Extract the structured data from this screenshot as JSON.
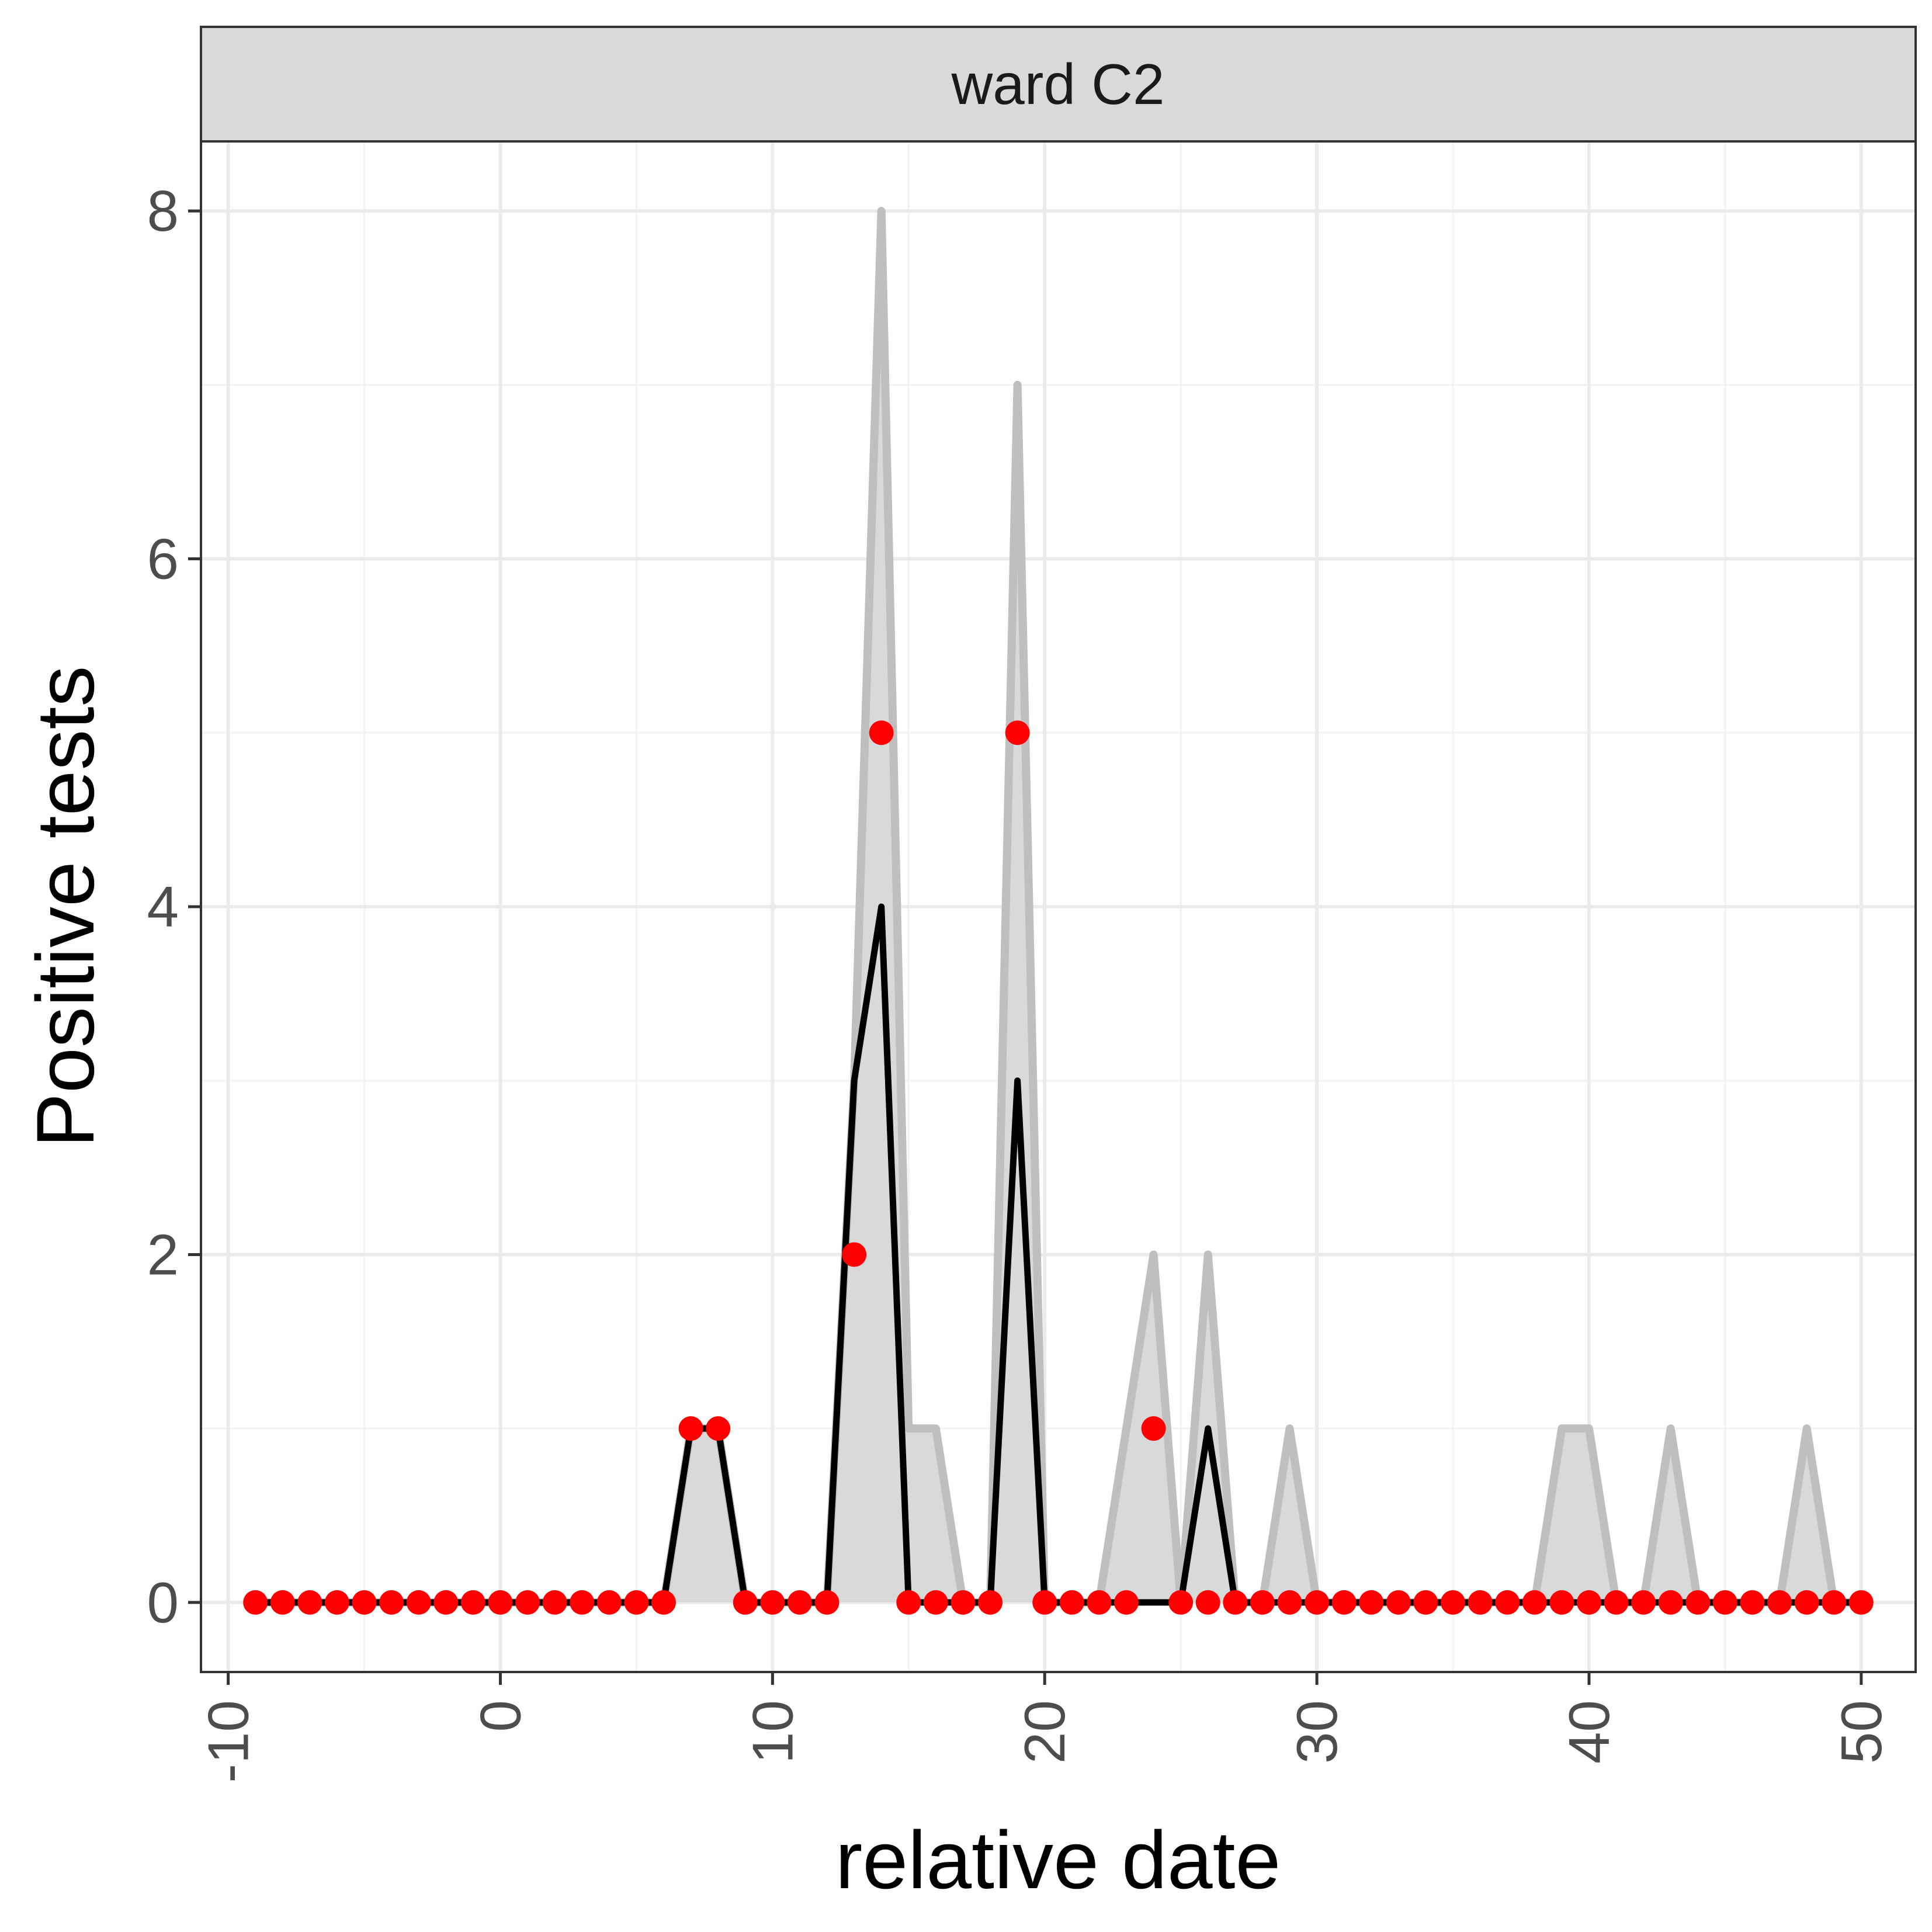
{
  "chart_data": {
    "type": "line",
    "facet_label": "ward C2",
    "xlabel": "relative date",
    "ylabel": "Positive tests",
    "xlim": [
      -11,
      52
    ],
    "ylim": [
      -0.4,
      8.4
    ],
    "x_ticks": [
      -10,
      0,
      10,
      20,
      30,
      40,
      50
    ],
    "y_ticks": [
      0,
      2,
      4,
      6,
      8
    ],
    "grid": true,
    "x": [
      -9,
      -8,
      -7,
      -6,
      -5,
      -4,
      -3,
      -2,
      -1,
      0,
      1,
      2,
      3,
      4,
      5,
      6,
      7,
      8,
      9,
      10,
      11,
      12,
      13,
      14,
      15,
      16,
      17,
      18,
      19,
      20,
      21,
      22,
      23,
      24,
      25,
      26,
      27,
      28,
      29,
      30,
      31,
      32,
      33,
      34,
      35,
      36,
      37,
      38,
      39,
      40,
      41,
      42,
      43,
      44,
      45,
      46,
      47,
      48,
      49,
      50
    ],
    "series": [
      {
        "role": "grey band (area + line)",
        "color": "#bfbfbf",
        "fill": "#d9d9d9",
        "values": [
          0,
          0,
          0,
          0,
          0,
          0,
          0,
          0,
          0,
          0,
          0,
          0,
          0,
          0,
          0,
          0,
          1,
          1,
          0,
          0,
          0,
          0,
          3,
          8,
          1,
          1,
          0,
          0,
          7,
          0,
          0,
          0,
          1,
          2,
          0,
          2,
          0,
          0,
          1,
          0,
          0,
          0,
          0,
          0,
          0,
          0,
          0,
          0,
          1,
          1,
          0,
          0,
          1,
          0,
          0,
          0,
          0,
          1,
          0,
          0
        ]
      },
      {
        "role": "black line",
        "color": "#000000",
        "values": [
          0,
          0,
          0,
          0,
          0,
          0,
          0,
          0,
          0,
          0,
          0,
          0,
          0,
          0,
          0,
          0,
          1,
          1,
          0,
          0,
          0,
          0,
          3,
          4,
          0,
          0,
          0,
          0,
          3,
          0,
          0,
          0,
          0,
          0,
          0,
          1,
          0,
          0,
          0,
          0,
          0,
          0,
          0,
          0,
          0,
          0,
          0,
          0,
          0,
          0,
          0,
          0,
          0,
          0,
          0,
          0,
          0,
          0,
          0,
          0
        ]
      },
      {
        "role": "red points",
        "color": "#ff0000",
        "values": [
          0,
          0,
          0,
          0,
          0,
          0,
          0,
          0,
          0,
          0,
          0,
          0,
          0,
          0,
          0,
          0,
          1,
          1,
          0,
          0,
          0,
          0,
          2,
          5,
          0,
          0,
          0,
          0,
          5,
          0,
          0,
          0,
          0,
          1,
          0,
          0,
          0,
          0,
          0,
          0,
          0,
          0,
          0,
          0,
          0,
          0,
          0,
          0,
          0,
          0,
          0,
          0,
          0,
          0,
          0,
          0,
          0,
          0,
          0,
          0
        ]
      }
    ]
  }
}
